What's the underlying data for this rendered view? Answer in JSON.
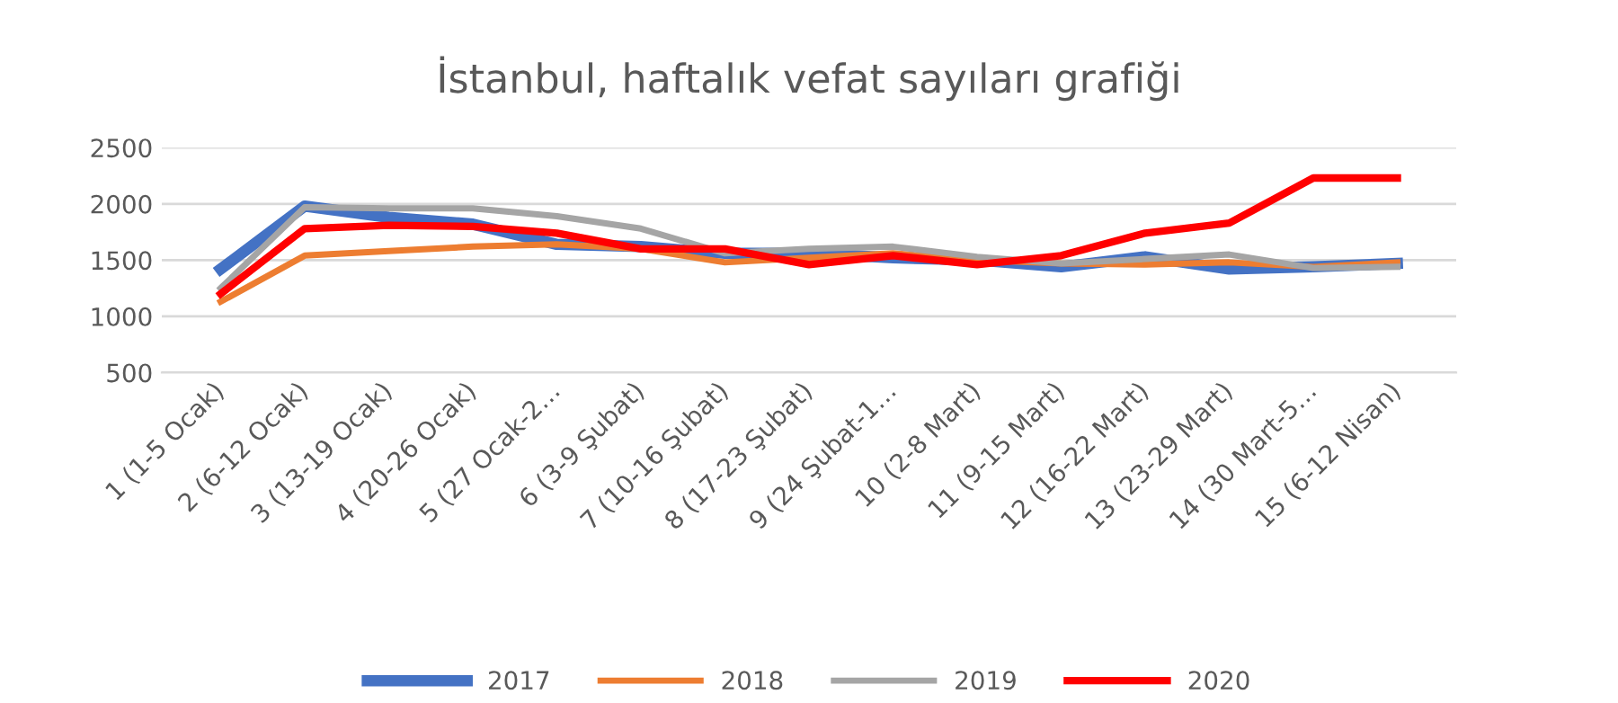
{
  "chart_data": {
    "type": "line",
    "title": "İstanbul, haftalık vefat sayıları grafiği",
    "categories": [
      "1 (1-5 Ocak)",
      "2 (6-12 Ocak)",
      "3 (13-19 Ocak)",
      "4 (20-26 Ocak)",
      "5 (27 Ocak-2…",
      "6 (3-9 Şubat)",
      "7 (10-16 Şubat)",
      "8 (17-23 Şubat)",
      "9 (24 Şubat-1…",
      "10 (2-8 Mart)",
      "11 (9-15 Mart)",
      "12 (16-22 Mart)",
      "13 (23-29 Mart)",
      "14 (30 Mart-5…",
      "15 (6-12 Nisan)"
    ],
    "series": [
      {
        "name": "2017",
        "color": "#4472c4",
        "values": [
          1420,
          1980,
          1880,
          1820,
          1640,
          1620,
          1560,
          1560,
          1520,
          1500,
          1440,
          1530,
          1420,
          1440,
          1470
        ]
      },
      {
        "name": "2018",
        "color": "#ed7d31",
        "values": [
          1130,
          1540,
          1580,
          1620,
          1640,
          1600,
          1480,
          1520,
          1560,
          1500,
          1470,
          1460,
          1480,
          1440,
          1480
        ]
      },
      {
        "name": "2019",
        "color": "#a5a5a5",
        "values": [
          1250,
          1970,
          1960,
          1960,
          1890,
          1780,
          1560,
          1600,
          1620,
          1530,
          1470,
          1510,
          1550,
          1430,
          1440
        ]
      },
      {
        "name": "2020",
        "color": "#ff0000",
        "values": [
          1200,
          1780,
          1810,
          1800,
          1740,
          1600,
          1600,
          1460,
          1540,
          1460,
          1540,
          1740,
          1830,
          2230,
          2230
        ]
      }
    ],
    "ylim": [
      500,
      2500
    ],
    "yticks": [
      500,
      1000,
      1500,
      2000,
      2500
    ],
    "grid": "y",
    "legend": "bottom",
    "marker": "none",
    "line_style": "solid"
  }
}
